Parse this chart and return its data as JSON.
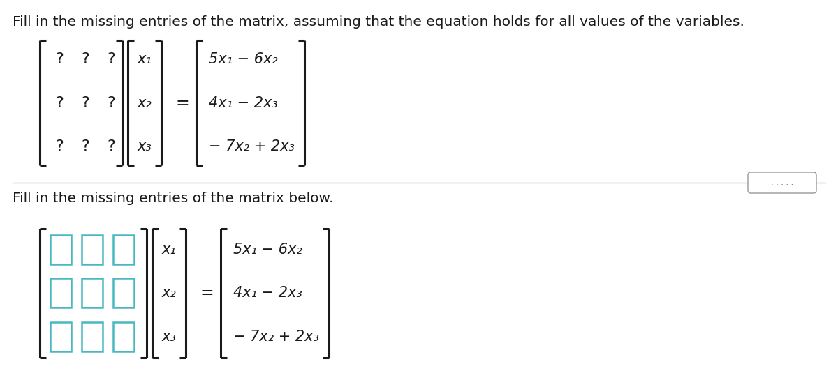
{
  "background_color": "#ffffff",
  "top_instruction": "Fill in the missing entries of the matrix, assuming that the equation holds for all values of the variables.",
  "bottom_instruction": "Fill in the missing entries of the matrix below.",
  "vector_x": [
    "x₁",
    "x₂",
    "x₃"
  ],
  "result_vector": [
    "5x₁ − 6x₂",
    "4x₁ − 2x₃",
    "− 7x₂ + 2x₃"
  ],
  "box_color": "#4ab8c1",
  "dots_color": "#555555",
  "font_color": "#1a1a1a",
  "separator_color": "#bbbbbb",
  "font_size_instruction": 14.5,
  "font_size_math": 15,
  "font_size_eq": 17
}
